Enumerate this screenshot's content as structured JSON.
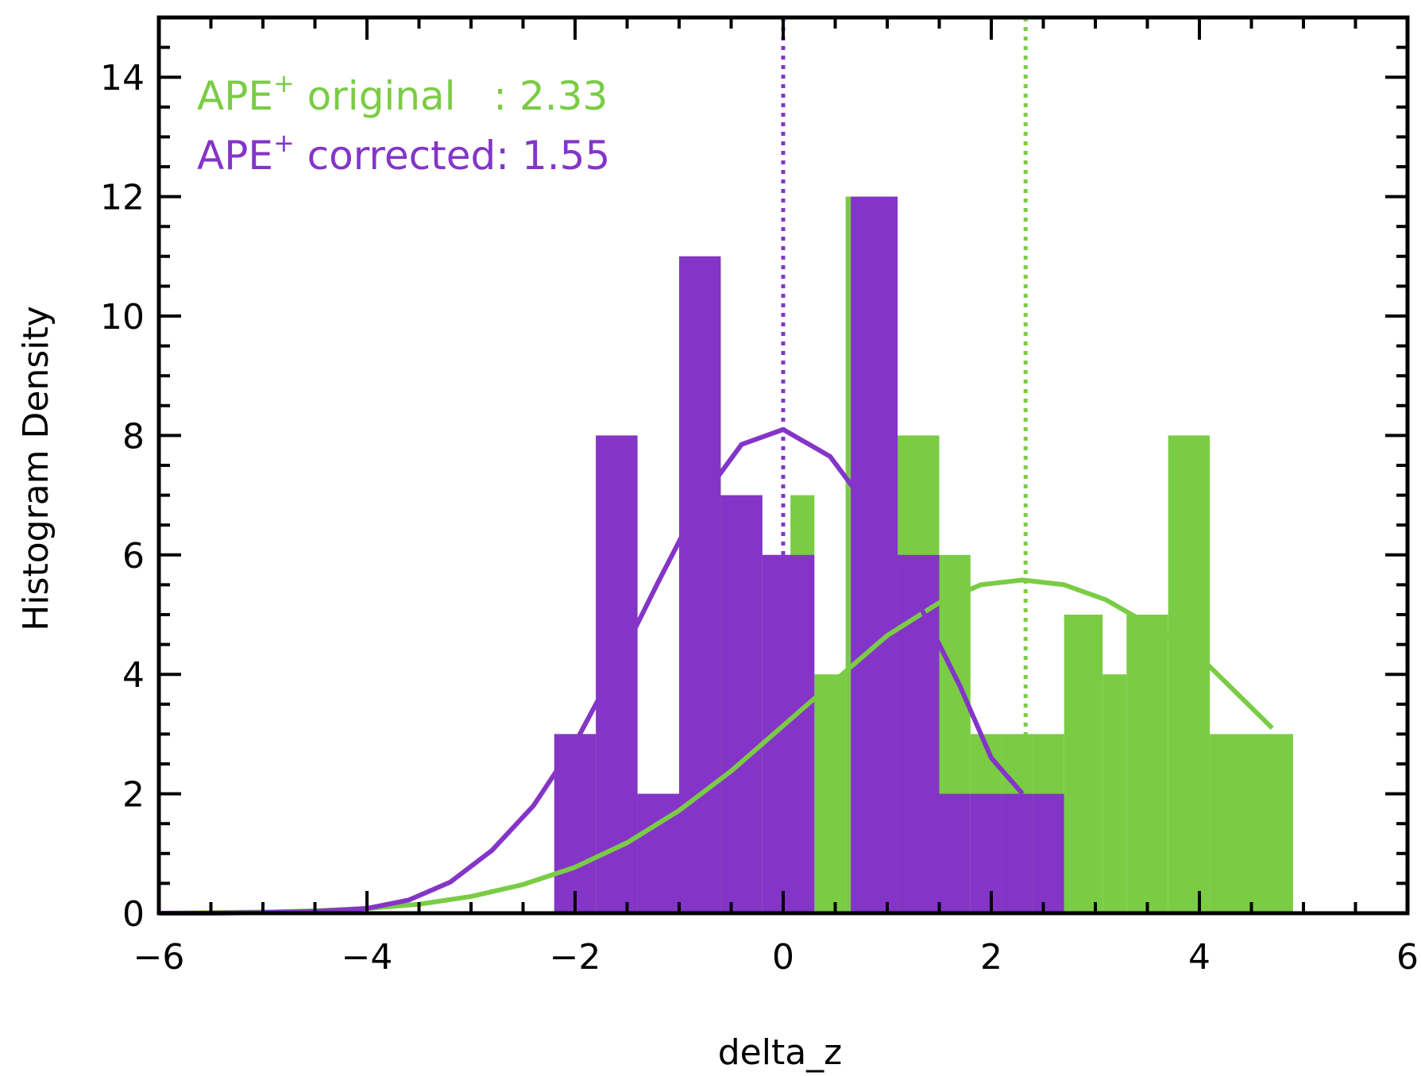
{
  "chart_data": {
    "type": "bar",
    "xlabel": "delta_z",
    "ylabel": "Histogram Density",
    "xlim": [
      -6,
      6
    ],
    "ylim": [
      0,
      15
    ],
    "x_ticks": [
      -6,
      -4,
      -2,
      0,
      2,
      4,
      6
    ],
    "x_tick_labels": [
      "−6",
      "−4",
      "−2",
      "0",
      "2",
      "4",
      "6"
    ],
    "y_ticks": [
      0,
      2,
      4,
      6,
      8,
      10,
      12,
      14
    ],
    "y_tick_labels": [
      "0",
      "2",
      "4",
      "6",
      "8",
      "10",
      "12",
      "14"
    ],
    "grid": false,
    "legend_position": "top-left",
    "colors": {
      "original": "#7acc44",
      "corrected": "#8435c8"
    },
    "legend": [
      {
        "prefix": "APE",
        "sup": "+",
        "text": " original   : 2.33",
        "color": "#7acc44"
      },
      {
        "prefix": "APE",
        "sup": "+",
        "text": " corrected: 1.55",
        "color": "#8435c8"
      }
    ],
    "series": [
      {
        "key": "original",
        "color": "#7acc44",
        "bin_edges": [
          -2.2,
          -1.8,
          -1.4,
          -1.0,
          -0.6,
          -0.2,
          0.07,
          0.3,
          0.6,
          1.07,
          1.5,
          1.8,
          2.1,
          2.4,
          2.7,
          3.07,
          3.3,
          3.7,
          4.1,
          4.5,
          4.9
        ],
        "values": [
          3,
          8,
          2,
          11,
          7,
          6,
          7,
          4,
          12,
          8,
          6,
          3,
          3,
          3,
          5,
          4,
          5,
          8,
          3,
          3
        ],
        "mean": 2.33,
        "fit_x": [
          -6,
          -5.5,
          -5,
          -4.5,
          -4,
          -3.5,
          -3,
          -2.5,
          -2,
          -1.5,
          -1,
          -0.5,
          0,
          0.5,
          1,
          1.5,
          1.9,
          2.3,
          2.7,
          3.1,
          3.5,
          4,
          4.7
        ],
        "fit_y": [
          0.0,
          0.01,
          0.02,
          0.04,
          0.08,
          0.15,
          0.28,
          0.48,
          0.77,
          1.18,
          1.72,
          2.38,
          3.14,
          3.9,
          4.65,
          5.2,
          5.5,
          5.58,
          5.5,
          5.25,
          4.85,
          4.3,
          3.1
        ]
      },
      {
        "key": "corrected",
        "color": "#8435c8",
        "bin_edges": [
          -2.2,
          -1.8,
          -1.4,
          -1.0,
          -0.6,
          -0.2,
          0.3,
          0.65,
          1.1,
          1.5,
          1.8,
          2.1,
          2.4,
          2.7
        ],
        "values": [
          3,
          8,
          2,
          11,
          7,
          6,
          0,
          12,
          6,
          2,
          2,
          2,
          2
        ],
        "mean": 0.0,
        "fit_x": [
          -6,
          -5.5,
          -5,
          -4.5,
          -4,
          -3.6,
          -3.2,
          -2.8,
          -2.4,
          -2.0,
          -1.6,
          -1.2,
          -0.8,
          -0.4,
          0.0,
          0.45,
          0.9,
          1.3,
          1.7,
          2.0,
          2.3
        ],
        "fit_y": [
          0.0,
          0.0,
          0.01,
          0.03,
          0.08,
          0.22,
          0.52,
          1.05,
          1.8,
          2.85,
          4.15,
          5.55,
          6.9,
          7.85,
          8.1,
          7.65,
          6.6,
          5.2,
          3.8,
          2.6,
          2.0
        ]
      }
    ]
  }
}
